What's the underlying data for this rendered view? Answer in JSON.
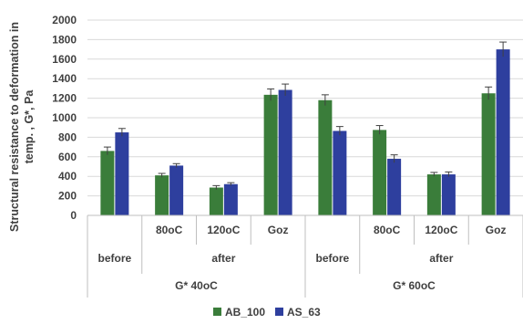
{
  "chart_data": {
    "type": "bar",
    "title": "",
    "ylabel_lines": [
      "Structural resistance to deformation in",
      "temp. , G*, Pa"
    ],
    "ylim": [
      0,
      2000
    ],
    "ytick_step": 200,
    "grid": true,
    "legend_position": "bottom",
    "categories": [
      "",
      "80oC",
      "120oC",
      "Goz",
      "",
      "80oC",
      "120oC",
      "Goz"
    ],
    "level2_groups": [
      {
        "label": "before",
        "span": [
          0,
          0
        ]
      },
      {
        "label": "after",
        "span": [
          1,
          3
        ]
      },
      {
        "label": "before",
        "span": [
          4,
          4
        ]
      },
      {
        "label": "after",
        "span": [
          5,
          7
        ]
      }
    ],
    "level3_groups": [
      {
        "label": "G* 40oC",
        "span": [
          0,
          3
        ]
      },
      {
        "label": "G* 60oC",
        "span": [
          4,
          7
        ]
      }
    ],
    "series": [
      {
        "name": "AB_100",
        "color": "#3a7d3a",
        "values": [
          660,
          410,
          285,
          1235,
          1180,
          875,
          420,
          1250
        ],
        "errors": [
          40,
          20,
          20,
          60,
          55,
          45,
          20,
          65
        ]
      },
      {
        "name": "AS_63",
        "color": "#2e3f9e",
        "values": [
          850,
          510,
          320,
          1285,
          865,
          580,
          420,
          1700
        ],
        "errors": [
          40,
          20,
          15,
          60,
          45,
          40,
          25,
          75
        ]
      }
    ]
  }
}
